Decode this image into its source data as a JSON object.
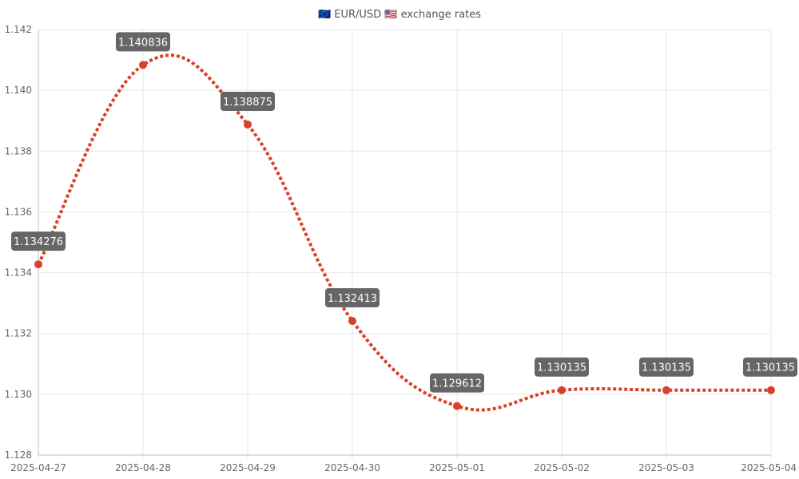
{
  "chart_data": {
    "type": "line",
    "title": "🇪🇺 EUR/USD 🇺🇸 exchange rates",
    "xlabel": "",
    "ylabel": "",
    "x": [
      "2025-04-27",
      "2025-04-28",
      "2025-04-29",
      "2025-04-30",
      "2025-05-01",
      "2025-05-02",
      "2025-05-03",
      "2025-05-04"
    ],
    "series": [
      {
        "values": [
          1.134276,
          1.140836,
          1.138875,
          1.132413,
          1.129612,
          1.130135,
          1.130135,
          1.130135
        ],
        "labels": [
          "1.134276",
          "1.140836",
          "1.138875",
          "1.132413",
          "1.129612",
          "1.130135",
          "1.130135",
          "1.130135"
        ],
        "color": "#d9412b",
        "line_style": "dotted",
        "smooth": true
      }
    ],
    "ylim": [
      1.128,
      1.142
    ],
    "yticks": [
      1.128,
      1.13,
      1.132,
      1.134,
      1.136,
      1.138,
      1.14,
      1.142
    ],
    "ytick_labels": [
      "1.128",
      "1.130",
      "1.132",
      "1.134",
      "1.136",
      "1.138",
      "1.140",
      "1.142"
    ],
    "grid": true,
    "legend": "none",
    "colors": {
      "grid": "#e6e6e6",
      "label_bg": "#666666",
      "label_text": "#ffffff"
    }
  }
}
